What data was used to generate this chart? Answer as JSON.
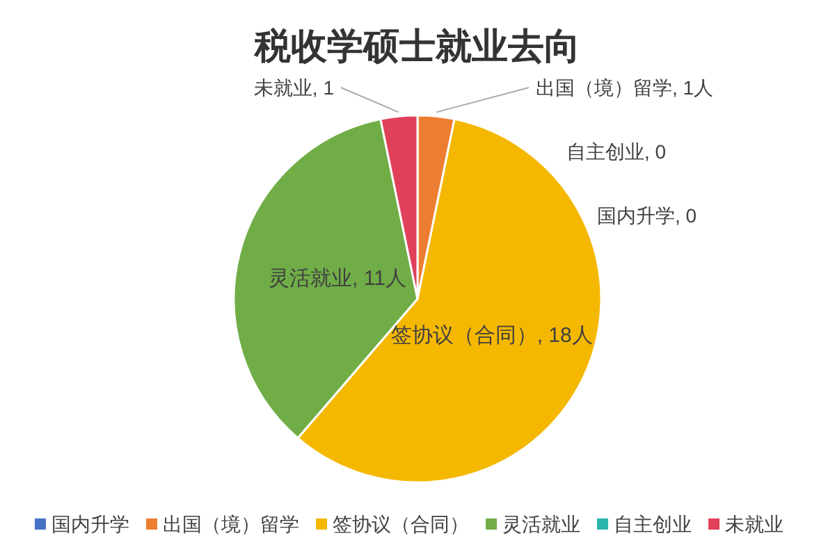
{
  "chart_data": {
    "type": "pie",
    "title": "税收学硕士就业去向",
    "categories": [
      "国内升学",
      "出国（境）留学",
      "签协议（合同）",
      "灵活就业",
      "自主创业",
      "未就业"
    ],
    "values": [
      0,
      1,
      18,
      11,
      0,
      1
    ],
    "value_labels": [
      "国内升学, 0",
      "出国（境）留学, 1人",
      "签协议（合同）, 18人",
      "灵活就业, 11人",
      "自主创业, 0",
      "未就业, 1"
    ],
    "colors": [
      "#4472c4",
      "#ed7d31",
      "#f5b800",
      "#70ad47",
      "#2cb5ad",
      "#e0405a"
    ],
    "legend": "bottom"
  }
}
